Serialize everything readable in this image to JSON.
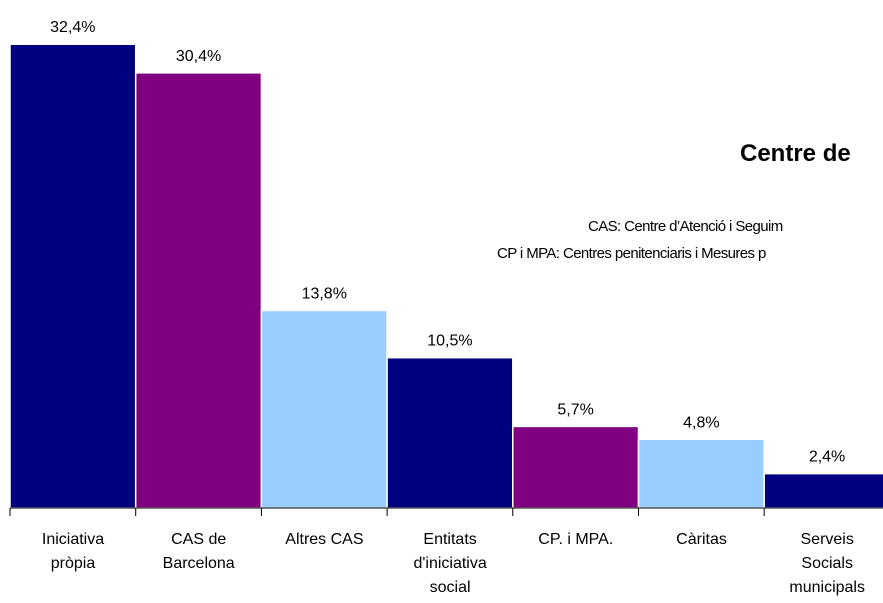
{
  "chart_data": {
    "type": "bar",
    "title": "Centre de",
    "notes": [
      "CAS: Centre d’Atenció i Seguim",
      "CP i MPA: Centres penitenciaris i Mesures p"
    ],
    "categories": [
      "Iniciativa\npròpia",
      "CAS de\nBarcelona",
      "Altres CAS",
      "Entitats\nd'iniciativa\nsocial",
      "CP. i MPA.",
      "Càritas",
      "Serveis\nSocials\nmunicipals"
    ],
    "values": [
      32.4,
      30.4,
      13.8,
      10.5,
      5.7,
      4.8,
      2.4
    ],
    "value_labels": [
      "32,4%",
      "30,4%",
      "13,8%",
      "10,5%",
      "5,7%",
      "4,8%",
      "2,4%"
    ],
    "colors": [
      "#000080",
      "#800080",
      "#99ccff",
      "#000080",
      "#800080",
      "#99ccff",
      "#000080"
    ],
    "ylim": [
      0,
      35
    ]
  }
}
